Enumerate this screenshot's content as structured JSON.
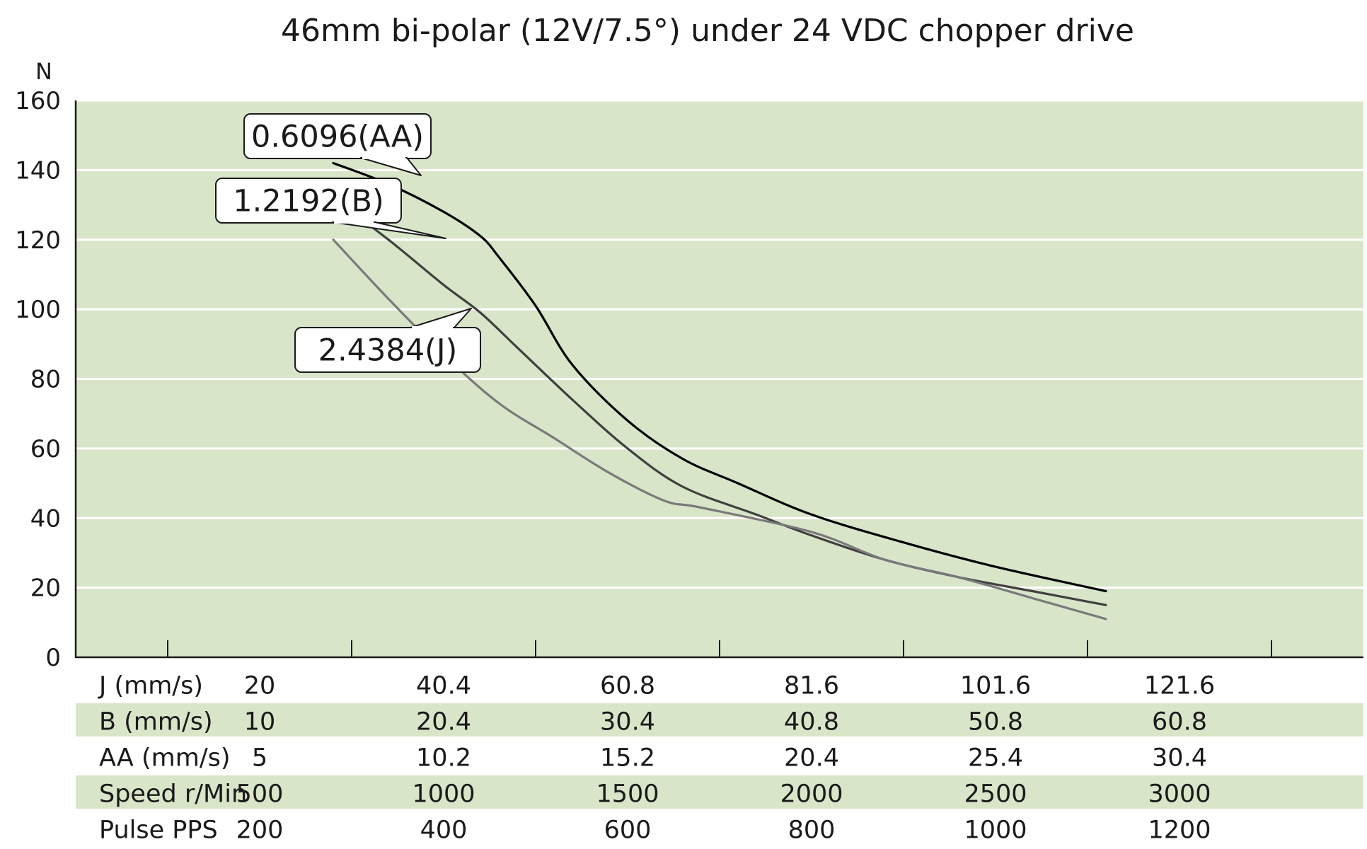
{
  "chart_data": {
    "type": "line",
    "title": "46mm bi-polar (12V/7.5°) under 24 VDC chopper drive",
    "ylabel": "N",
    "xlabel": "",
    "ylim": [
      0,
      160
    ],
    "yticks": [
      0,
      20,
      40,
      60,
      80,
      100,
      120,
      140,
      160
    ],
    "xlim": [
      0,
      3500
    ],
    "grid": true,
    "x_units": "Speed r/Min",
    "series": [
      {
        "name": "0.6096(AA)",
        "color": "#000000",
        "points": [
          [
            700,
            142
          ],
          [
            850,
            136
          ],
          [
            1000,
            128
          ],
          [
            1100,
            121
          ],
          [
            1150,
            115
          ],
          [
            1250,
            101
          ],
          [
            1350,
            84
          ],
          [
            1500,
            68
          ],
          [
            1650,
            57
          ],
          [
            1800,
            50
          ],
          [
            2000,
            41
          ],
          [
            2250,
            33
          ],
          [
            2500,
            26
          ],
          [
            2800,
            19
          ]
        ]
      },
      {
        "name": "1.2192(B)",
        "color": "#404040",
        "points": [
          [
            700,
            132
          ],
          [
            850,
            120
          ],
          [
            1000,
            107
          ],
          [
            1100,
            99
          ],
          [
            1200,
            89
          ],
          [
            1350,
            74
          ],
          [
            1500,
            60
          ],
          [
            1650,
            49
          ],
          [
            1850,
            41
          ],
          [
            2000,
            35
          ],
          [
            2200,
            28
          ],
          [
            2400,
            23
          ],
          [
            2600,
            19
          ],
          [
            2800,
            15
          ]
        ]
      },
      {
        "name": "2.4384(J)",
        "color": "#7a7a7a",
        "points": [
          [
            700,
            120
          ],
          [
            850,
            103
          ],
          [
            1000,
            87
          ],
          [
            1150,
            73
          ],
          [
            1300,
            63
          ],
          [
            1450,
            53
          ],
          [
            1600,
            45
          ],
          [
            1700,
            43
          ],
          [
            2000,
            36
          ],
          [
            2200,
            28
          ],
          [
            2400,
            23
          ],
          [
            2600,
            17
          ],
          [
            2800,
            11
          ]
        ]
      }
    ],
    "table": {
      "columns": [
        500,
        1000,
        1500,
        2000,
        2500,
        3000
      ],
      "rows": [
        {
          "label": "J (mm/s)",
          "values": [
            "20",
            "40.4",
            "60.8",
            "81.6",
            "101.6",
            "121.6"
          ],
          "shaded": false
        },
        {
          "label": "B (mm/s)",
          "values": [
            "10",
            "20.4",
            "30.4",
            "40.8",
            "50.8",
            "60.8"
          ],
          "shaded": true
        },
        {
          "label": "AA (mm/s)",
          "values": [
            "5",
            "10.2",
            "15.2",
            "20.4",
            "25.4",
            "30.4"
          ],
          "shaded": false
        },
        {
          "label": "Speed  r/Min",
          "values": [
            "500",
            "1000",
            "1500",
            "2000",
            "2500",
            "3000"
          ],
          "shaded": true
        },
        {
          "label": "Pulse  PPS",
          "values": [
            "200",
            "400",
            "600",
            "800",
            "1000",
            "1200"
          ],
          "shaded": false
        }
      ]
    },
    "callouts": [
      {
        "text": "0.6096(AA)",
        "series": 0,
        "at_x": 700
      },
      {
        "text": "1.2192(B)",
        "series": 1,
        "at_x": 910
      },
      {
        "text": "2.4384(J)",
        "series": 2,
        "at_x": 860
      }
    ]
  },
  "colors": {
    "plot_background": "#d9e5c9",
    "grid": "#ffffff",
    "axis": "#1a1a1a",
    "row_shade": "#d9e5c9"
  }
}
